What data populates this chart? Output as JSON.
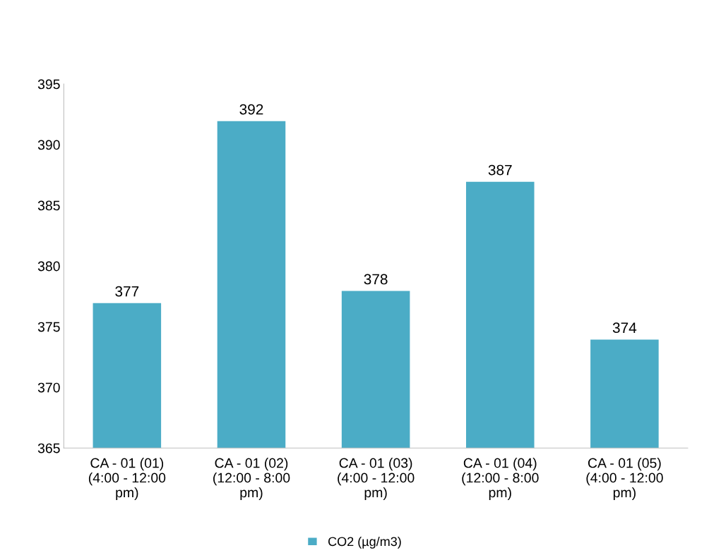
{
  "chart_data": {
    "type": "bar",
    "categories": [
      "CA - 01 (01)\n(4:00 - 12:00\npm)",
      "CA - 01 (02)\n(12:00 - 8:00\npm)",
      "CA - 01 (03)\n(4:00 - 12:00\npm)",
      "CA - 01 (04)\n(12:00 - 8:00\npm)",
      "CA - 01 (05)\n(4:00 - 12:00\npm)"
    ],
    "series": [
      {
        "name": "CO2 (µg/m3)",
        "color": "#4bacc6",
        "values": [
          377,
          392,
          378,
          387,
          374
        ]
      }
    ],
    "ylim": [
      365,
      395
    ],
    "yticks": [
      365,
      370,
      375,
      380,
      385,
      390,
      395
    ],
    "data_labels": true,
    "grid": false,
    "legend": "bottom"
  }
}
